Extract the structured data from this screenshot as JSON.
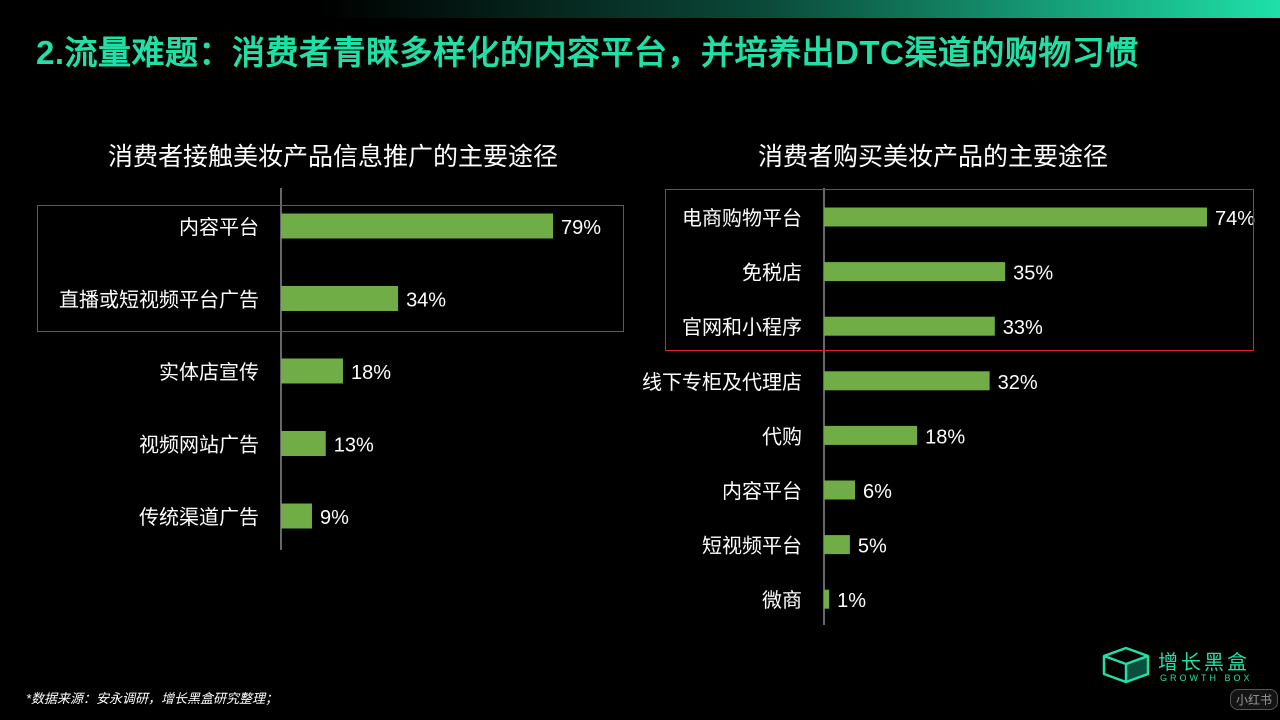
{
  "page": {
    "title": "2.流量难题：消费者青睐多样化的内容平台，并培养出DTC渠道的购物习惯",
    "footnote": "*数据来源：安永调研，增长黑盒研究整理；",
    "brand_name": "增长黑盒",
    "brand_sub": "GROWTH BOX",
    "watermark": "小红书"
  },
  "colors": {
    "accent": "#20e0a8",
    "bar": "#70ad47",
    "highlight_border": "#d9242c",
    "background": "#000000"
  },
  "chart_data": [
    {
      "type": "bar",
      "orientation": "horizontal",
      "title": "消费者接触美妆产品信息推广的主要途径",
      "categories": [
        "内容平台",
        "直播或短视频平台广告",
        "实体店宣传",
        "视频网站广告",
        "传统渠道广告"
      ],
      "values": [
        79,
        34,
        18,
        13,
        9
      ],
      "value_labels": [
        "79%",
        "34%",
        "18%",
        "13%",
        "9%"
      ],
      "unit": "%",
      "highlighted_categories": [
        "内容平台",
        "直播或短视频平台广告"
      ]
    },
    {
      "type": "bar",
      "orientation": "horizontal",
      "title": "消费者购买美妆产品的主要途径",
      "categories": [
        "电商购物平台",
        "免税店",
        "官网和小程序",
        "线下专柜及代理店",
        "代购",
        "内容平台",
        "短视频平台",
        "微商"
      ],
      "values": [
        74,
        35,
        33,
        32,
        18,
        6,
        5,
        1
      ],
      "value_labels": [
        "74%",
        "35%",
        "33%",
        "32%",
        "18%",
        "6%",
        "5%",
        "1%"
      ],
      "unit": "%",
      "highlighted_categories": [
        "电商购物平台",
        "免税店",
        "官网和小程序"
      ]
    }
  ]
}
